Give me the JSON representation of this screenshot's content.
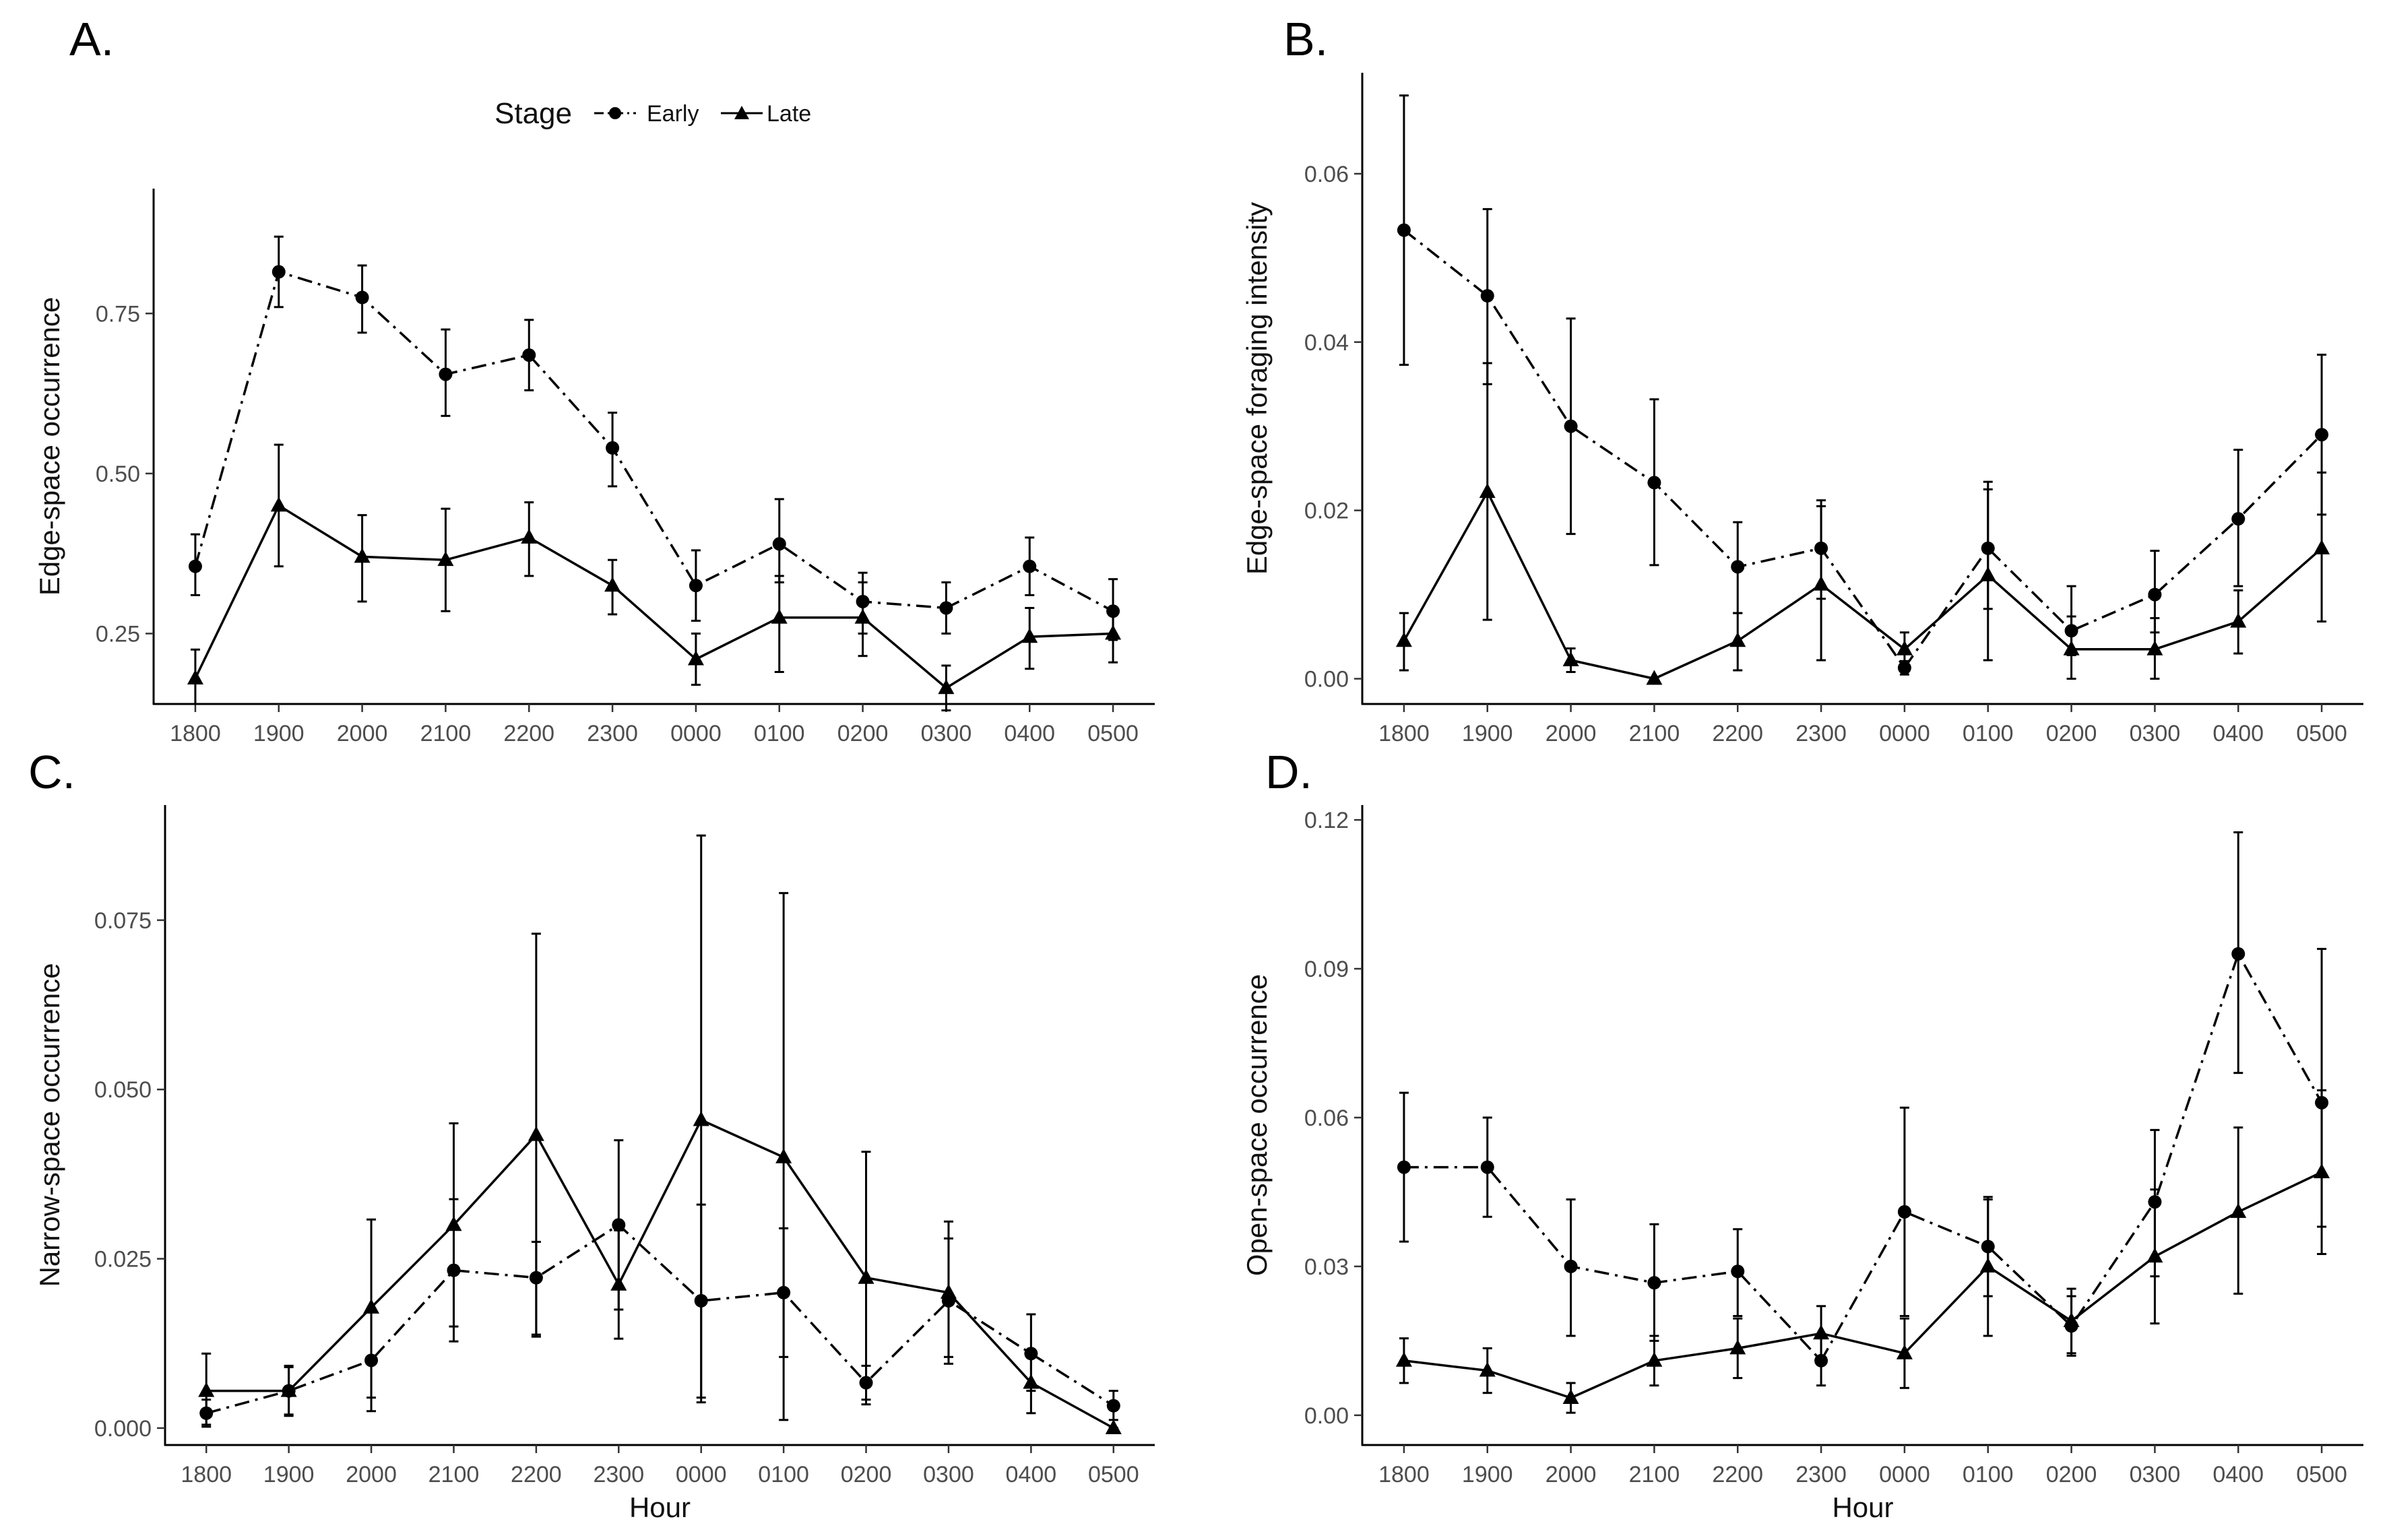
{
  "figure": {
    "legend": {
      "title": "Stage",
      "entries": [
        {
          "label": "Early",
          "marker": "circle",
          "line": "dashdot"
        },
        {
          "label": "Late",
          "marker": "triangle",
          "line": "solid"
        }
      ]
    },
    "colors": {
      "ink": "#000000",
      "axis": "#000000",
      "tick_text": "#4d4d4d"
    }
  },
  "chart_data": [
    {
      "type": "line",
      "panel": "A.",
      "title": "",
      "xlabel": "",
      "ylabel": "Edge-space occurrence",
      "categories": [
        "1800",
        "1900",
        "2000",
        "2100",
        "2200",
        "2300",
        "0000",
        "0100",
        "0200",
        "0300",
        "0400",
        "0500"
      ],
      "ylim": [
        0.14,
        0.945
      ],
      "yticks": [
        0.25,
        0.5,
        0.75
      ],
      "ytick_labels": [
        "0.25",
        "0.50",
        "0.75"
      ],
      "series": [
        {
          "name": "Early",
          "marker": "circle",
          "line": "dashdot",
          "values": [
            0.355,
            0.815,
            0.775,
            0.655,
            0.685,
            0.54,
            0.325,
            0.39,
            0.3,
            0.29,
            0.355,
            0.285
          ],
          "lower": [
            0.31,
            0.76,
            0.72,
            0.59,
            0.63,
            0.48,
            0.27,
            0.33,
            0.25,
            0.25,
            0.31,
            0.24
          ],
          "upper": [
            0.405,
            0.87,
            0.825,
            0.725,
            0.74,
            0.595,
            0.38,
            0.46,
            0.345,
            0.33,
            0.4,
            0.335
          ]
        },
        {
          "name": "Late",
          "marker": "triangle",
          "line": "solid",
          "values": [
            0.18,
            0.45,
            0.37,
            0.365,
            0.4,
            0.325,
            0.21,
            0.275,
            0.275,
            0.165,
            0.245,
            0.25
          ],
          "lower": [
            0.14,
            0.355,
            0.3,
            0.285,
            0.34,
            0.28,
            0.17,
            0.19,
            0.215,
            0.13,
            0.195,
            0.205
          ],
          "upper": [
            0.225,
            0.545,
            0.435,
            0.445,
            0.455,
            0.365,
            0.25,
            0.34,
            0.33,
            0.2,
            0.29,
            0.29
          ]
        }
      ]
    },
    {
      "type": "line",
      "panel": "B.",
      "title": "",
      "xlabel": "",
      "ylabel": "Edge-space foraging intensity",
      "categories": [
        "1800",
        "1900",
        "2000",
        "2100",
        "2200",
        "2300",
        "0000",
        "0100",
        "0200",
        "0300",
        "0400",
        "0500"
      ],
      "ylim": [
        -0.003,
        0.072
      ],
      "yticks": [
        0.0,
        0.02,
        0.04,
        0.06
      ],
      "ytick_labels": [
        "0.00",
        "0.02",
        "0.04",
        "0.06"
      ],
      "series": [
        {
          "name": "Early",
          "marker": "circle",
          "line": "dashdot",
          "values": [
            0.0533,
            0.0455,
            0.03,
            0.0233,
            0.0133,
            0.0155,
            0.0013,
            0.0155,
            0.0057,
            0.01,
            0.019,
            0.029
          ],
          "lower": [
            0.0373,
            0.035,
            0.0172,
            0.0135,
            0.0078,
            0.0095,
            0.0005,
            0.0083,
            0.0028,
            0.0055,
            0.011,
            0.0195
          ],
          "upper": [
            0.0693,
            0.0558,
            0.0428,
            0.0332,
            0.0186,
            0.0212,
            0.0021,
            0.0234,
            0.011,
            0.0152,
            0.0272,
            0.0385
          ]
        },
        {
          "name": "Late",
          "marker": "triangle",
          "line": "solid",
          "values": [
            0.0045,
            0.0222,
            0.0022,
            0.0,
            0.0045,
            0.0112,
            0.0035,
            0.0123,
            0.0035,
            0.0035,
            0.0068,
            0.0155
          ],
          "lower": [
            0.001,
            0.007,
            0.0008,
            0.0,
            0.001,
            0.0022,
            0.0015,
            0.0022,
            0.0,
            0.0,
            0.003,
            0.0068
          ],
          "upper": [
            0.0078,
            0.0375,
            0.0036,
            0.0,
            0.0078,
            0.0205,
            0.0055,
            0.0225,
            0.0074,
            0.0072,
            0.0105,
            0.0245
          ]
        }
      ]
    },
    {
      "type": "line",
      "panel": "C.",
      "title": "",
      "xlabel": "Hour",
      "ylabel": "Narrow-space occurrence",
      "categories": [
        "1800",
        "1900",
        "2000",
        "2100",
        "2200",
        "2300",
        "0000",
        "0100",
        "0200",
        "0300",
        "0400",
        "0500"
      ],
      "ylim": [
        -0.0025,
        0.092
      ],
      "yticks": [
        0.0,
        0.025,
        0.05,
        0.075
      ],
      "ytick_labels": [
        "0.000",
        "0.025",
        "0.050",
        "0.075"
      ],
      "series": [
        {
          "name": "Early",
          "marker": "circle",
          "line": "dashdot",
          "values": [
            0.0022,
            0.0055,
            0.01,
            0.0233,
            0.0222,
            0.03,
            0.0188,
            0.02,
            0.0067,
            0.0188,
            0.011,
            0.0033
          ],
          "lower": [
            0.0002,
            0.002,
            0.0025,
            0.0128,
            0.0135,
            0.0175,
            0.0045,
            0.0012,
            0.0042,
            0.0095,
            0.0055,
            0.0012
          ],
          "upper": [
            0.0042,
            0.009,
            0.0175,
            0.0338,
            0.0275,
            0.0425,
            0.033,
            0.0295,
            0.0092,
            0.028,
            0.0168,
            0.0055
          ]
        },
        {
          "name": "Late",
          "marker": "triangle",
          "line": "solid",
          "values": [
            0.0055,
            0.0055,
            0.0178,
            0.03,
            0.0433,
            0.0212,
            0.0455,
            0.04,
            0.0222,
            0.02,
            0.0067,
            0.0
          ],
          "lower": [
            0.0005,
            0.0018,
            0.0045,
            0.015,
            0.0138,
            0.0132,
            0.0038,
            0.0105,
            0.0035,
            0.0105,
            0.0022,
            0.0
          ],
          "upper": [
            0.011,
            0.0092,
            0.0308,
            0.045,
            0.073,
            0.0292,
            0.0875,
            0.079,
            0.0408,
            0.0305,
            0.0112,
            0.0
          ]
        }
      ]
    },
    {
      "type": "line",
      "panel": "D.",
      "title": "",
      "xlabel": "Hour",
      "ylabel": "Open-space occurrence",
      "categories": [
        "1800",
        "1900",
        "2000",
        "2100",
        "2200",
        "2300",
        "0000",
        "0100",
        "0200",
        "0300",
        "0400",
        "0500"
      ],
      "ylim": [
        -0.006,
        0.123
      ],
      "yticks": [
        0.0,
        0.03,
        0.06,
        0.09,
        0.12
      ],
      "ytick_labels": [
        "0.00",
        "0.03",
        "0.06",
        "0.09",
        "0.12"
      ],
      "series": [
        {
          "name": "Early",
          "marker": "circle",
          "line": "dashdot",
          "values": [
            0.05,
            0.05,
            0.03,
            0.0267,
            0.029,
            0.011,
            0.041,
            0.034,
            0.018,
            0.043,
            0.093,
            0.063
          ],
          "lower": [
            0.035,
            0.04,
            0.016,
            0.015,
            0.02,
            0.006,
            0.02,
            0.024,
            0.012,
            0.028,
            0.069,
            0.038
          ],
          "upper": [
            0.065,
            0.06,
            0.0435,
            0.0385,
            0.0375,
            0.016,
            0.062,
            0.044,
            0.024,
            0.0575,
            0.1175,
            0.094
          ]
        },
        {
          "name": "Late",
          "marker": "triangle",
          "line": "solid",
          "values": [
            0.011,
            0.009,
            0.0035,
            0.011,
            0.0135,
            0.0165,
            0.0125,
            0.03,
            0.019,
            0.032,
            0.041,
            0.049
          ],
          "lower": [
            0.0065,
            0.0045,
            0.0005,
            0.006,
            0.0075,
            0.011,
            0.0055,
            0.016,
            0.0125,
            0.0185,
            0.0245,
            0.0325
          ],
          "upper": [
            0.0155,
            0.0135,
            0.0065,
            0.016,
            0.0195,
            0.022,
            0.0195,
            0.0435,
            0.0255,
            0.0455,
            0.058,
            0.0655
          ]
        }
      ]
    }
  ]
}
